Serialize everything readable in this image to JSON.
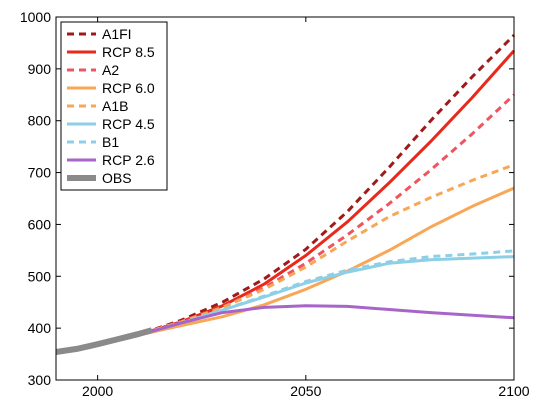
{
  "chart_data": {
    "type": "line",
    "title": "",
    "xlabel": "",
    "ylabel": "",
    "xlim": [
      1990,
      2100
    ],
    "ylim": [
      300,
      1000
    ],
    "x_ticks": [
      2000,
      2050,
      2100
    ],
    "y_ticks": [
      300,
      400,
      500,
      600,
      700,
      800,
      900,
      1000
    ],
    "grid": false,
    "legend_position": "top-left",
    "series": [
      {
        "name": "A1FI",
        "color": "#a01a1a",
        "dash": "dashed",
        "points": [
          [
            2000,
            368
          ],
          [
            2010,
            388
          ],
          [
            2020,
            415
          ],
          [
            2030,
            450
          ],
          [
            2040,
            495
          ],
          [
            2050,
            552
          ],
          [
            2060,
            625
          ],
          [
            2070,
            710
          ],
          [
            2080,
            800
          ],
          [
            2090,
            885
          ],
          [
            2100,
            965
          ]
        ]
      },
      {
        "name": "RCP 8.5",
        "color": "#e8291c",
        "dash": "solid",
        "points": [
          [
            2000,
            368
          ],
          [
            2010,
            388
          ],
          [
            2020,
            412
          ],
          [
            2030,
            443
          ],
          [
            2040,
            485
          ],
          [
            2050,
            540
          ],
          [
            2060,
            605
          ],
          [
            2070,
            680
          ],
          [
            2080,
            760
          ],
          [
            2090,
            845
          ],
          [
            2100,
            935
          ]
        ]
      },
      {
        "name": "A2",
        "color": "#f0545f",
        "dash": "dashed",
        "points": [
          [
            2000,
            368
          ],
          [
            2010,
            388
          ],
          [
            2020,
            412
          ],
          [
            2030,
            440
          ],
          [
            2040,
            478
          ],
          [
            2050,
            525
          ],
          [
            2060,
            580
          ],
          [
            2070,
            640
          ],
          [
            2080,
            705
          ],
          [
            2090,
            775
          ],
          [
            2100,
            850
          ]
        ]
      },
      {
        "name": "RCP 6.0",
        "color": "#f7a755",
        "dash": "solid",
        "points": [
          [
            2000,
            368
          ],
          [
            2010,
            387
          ],
          [
            2020,
            405
          ],
          [
            2030,
            422
          ],
          [
            2040,
            445
          ],
          [
            2050,
            475
          ],
          [
            2060,
            510
          ],
          [
            2070,
            550
          ],
          [
            2080,
            595
          ],
          [
            2090,
            635
          ],
          [
            2100,
            670
          ]
        ]
      },
      {
        "name": "A1B",
        "color": "#f7a755",
        "dash": "dashed",
        "points": [
          [
            2000,
            368
          ],
          [
            2010,
            388
          ],
          [
            2020,
            412
          ],
          [
            2030,
            440
          ],
          [
            2040,
            475
          ],
          [
            2050,
            518
          ],
          [
            2060,
            568
          ],
          [
            2070,
            615
          ],
          [
            2080,
            652
          ],
          [
            2090,
            685
          ],
          [
            2100,
            715
          ]
        ]
      },
      {
        "name": "RCP 4.5",
        "color": "#8ccfe6",
        "dash": "solid",
        "points": [
          [
            2000,
            368
          ],
          [
            2010,
            387
          ],
          [
            2020,
            410
          ],
          [
            2030,
            435
          ],
          [
            2040,
            460
          ],
          [
            2050,
            487
          ],
          [
            2060,
            508
          ],
          [
            2070,
            525
          ],
          [
            2080,
            532
          ],
          [
            2090,
            535
          ],
          [
            2100,
            538
          ]
        ]
      },
      {
        "name": "B1",
        "color": "#8ccfe6",
        "dash": "dashed",
        "points": [
          [
            2000,
            368
          ],
          [
            2010,
            387
          ],
          [
            2020,
            410
          ],
          [
            2030,
            435
          ],
          [
            2040,
            462
          ],
          [
            2050,
            490
          ],
          [
            2060,
            512
          ],
          [
            2070,
            528
          ],
          [
            2080,
            538
          ],
          [
            2090,
            543
          ],
          [
            2100,
            549
          ]
        ]
      },
      {
        "name": "RCP 2.6",
        "color": "#a865c9",
        "dash": "solid",
        "points": [
          [
            2000,
            368
          ],
          [
            2010,
            387
          ],
          [
            2020,
            410
          ],
          [
            2030,
            430
          ],
          [
            2040,
            440
          ],
          [
            2050,
            443
          ],
          [
            2060,
            442
          ],
          [
            2070,
            436
          ],
          [
            2080,
            430
          ],
          [
            2090,
            425
          ],
          [
            2100,
            420
          ]
        ]
      },
      {
        "name": "OBS",
        "color": "#8a8a8a",
        "dash": "solid",
        "thick": true,
        "points": [
          [
            1990,
            354
          ],
          [
            1995,
            360
          ],
          [
            2000,
            369
          ],
          [
            2005,
            379
          ],
          [
            2010,
            389
          ],
          [
            2013,
            396
          ]
        ]
      }
    ]
  }
}
